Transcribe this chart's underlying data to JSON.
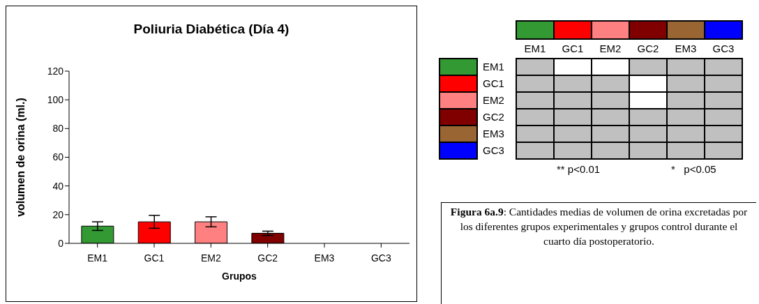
{
  "chart_data": [
    {
      "type": "bar",
      "title": "Poliuria Diabética (Día 4)",
      "xlabel": "Grupos",
      "ylabel": "volumen de orina (ml.)",
      "categories": [
        "EM1",
        "GC1",
        "EM2",
        "GC2",
        "EM3",
        "GC3"
      ],
      "values": [
        12,
        15,
        15,
        7,
        0,
        0
      ],
      "errors": [
        3,
        4.5,
        3.5,
        1.5,
        null,
        null
      ],
      "colors": [
        "#339933",
        "#ff0000",
        "#ff8080",
        "#800000",
        "#996633",
        "#0000ff"
      ],
      "ylim": [
        0,
        120
      ],
      "yticks": [
        0,
        20,
        40,
        60,
        80,
        100,
        120
      ],
      "grid": false
    },
    {
      "type": "other",
      "categories": [
        "EM1",
        "GC1",
        "EM2",
        "GC2",
        "EM3",
        "GC3"
      ],
      "y_categories": [
        "EM1",
        "GC1",
        "EM2",
        "GC2",
        "EM3",
        "GC3"
      ],
      "colors": [
        "#339933",
        "#ff0000",
        "#ff8080",
        "#800000",
        "#996633",
        "#0000ff"
      ],
      "annotations": [
        "** p<0.01",
        "*   p<0.05",
        "Figura 6a.9: Cantidades medias de volumen de orina excretadas por los diferentes grupos experimentales y grupos control durante el cuarto día postoperatorio."
      ]
    }
  ]
}
